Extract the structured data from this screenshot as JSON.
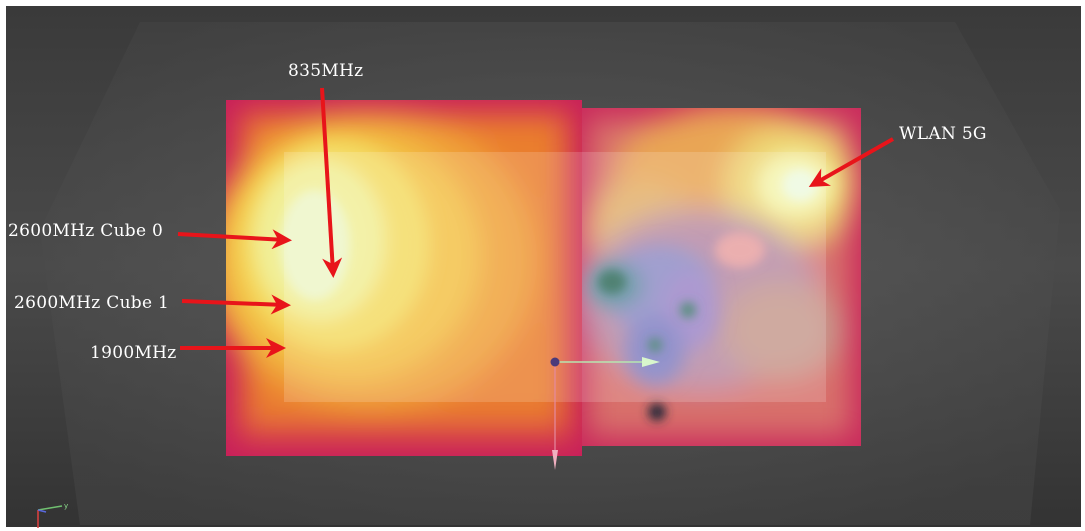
{
  "annotations": {
    "label_835": "835MHz",
    "label_wlan": "WLAN 5G",
    "label_2600_cube0": "2600MHz Cube 0",
    "label_2600_cube1": "2600MHz Cube 1",
    "label_1900": "1900MHz"
  },
  "axis_triad": {
    "y_label": "y"
  },
  "colors": {
    "background_dark": "#2e2e2e",
    "background_light": "#5a5a5a",
    "arrow": "#e8141a",
    "hot_core": "#eef6c8",
    "warm": "#f3c246",
    "orange": "#ea7e2e",
    "edge": "#c81f55",
    "low_field": "#2f6a58",
    "text": "#ffffff"
  }
}
